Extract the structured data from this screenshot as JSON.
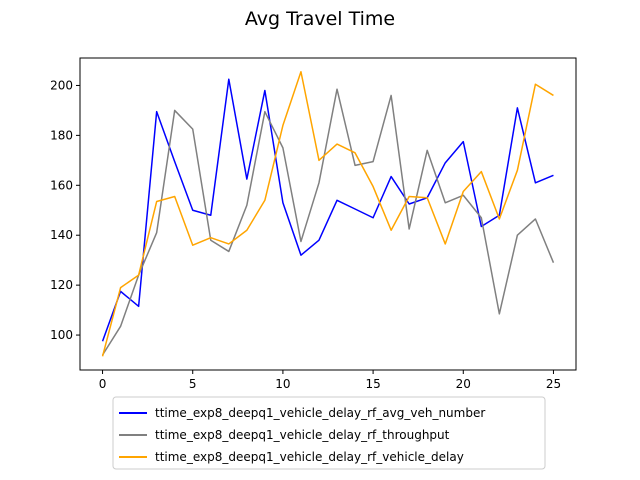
{
  "chart_data": {
    "type": "line",
    "title": "Avg Travel Time",
    "xlabel": "",
    "ylabel": "",
    "xlim": [
      -1.25,
      26.25
    ],
    "ylim": [
      86,
      211
    ],
    "xticks": [
      0,
      5,
      10,
      15,
      20,
      25
    ],
    "yticks": [
      100,
      120,
      140,
      160,
      180,
      200
    ],
    "grid": false,
    "legend_position": "bottom-center, below plot",
    "x": [
      0,
      1,
      2,
      3,
      4,
      5,
      6,
      7,
      8,
      9,
      10,
      11,
      12,
      13,
      14,
      15,
      16,
      17,
      18,
      19,
      20,
      21,
      22,
      23,
      24,
      25
    ],
    "series": [
      {
        "name": "ttime_exp8_deepq1_vehicle_delay_rf_avg_veh_number",
        "color": "#0000ff",
        "values": [
          97.5,
          117.5,
          111.5,
          189.5,
          169.5,
          150,
          148,
          202.5,
          162.5,
          198,
          153,
          132,
          138,
          154,
          150.5,
          147,
          163.5,
          152.5,
          155,
          169,
          177.5,
          143.5,
          148,
          191,
          161,
          164
        ]
      },
      {
        "name": "ttime_exp8_deepq1_vehicle_delay_rf_throughput",
        "color": "#808080",
        "values": [
          92,
          103.5,
          124,
          141,
          190,
          182.5,
          138,
          133.5,
          152,
          189.5,
          175,
          137.5,
          161,
          198.5,
          168,
          169.5,
          196,
          142.5,
          174,
          153,
          156,
          147,
          108.5,
          140,
          146.5,
          129
        ]
      },
      {
        "name": "ttime_exp8_deepq1_vehicle_delay_rf_vehicle_delay",
        "color": "#ffa500",
        "values": [
          91.5,
          119,
          124,
          153.5,
          155.5,
          136,
          139,
          136.5,
          142,
          154,
          184,
          205.5,
          170,
          176.5,
          173,
          159.5,
          142,
          155.5,
          155,
          136.5,
          157.5,
          165.5,
          146.5,
          166,
          200.5,
          196
        ]
      }
    ]
  }
}
